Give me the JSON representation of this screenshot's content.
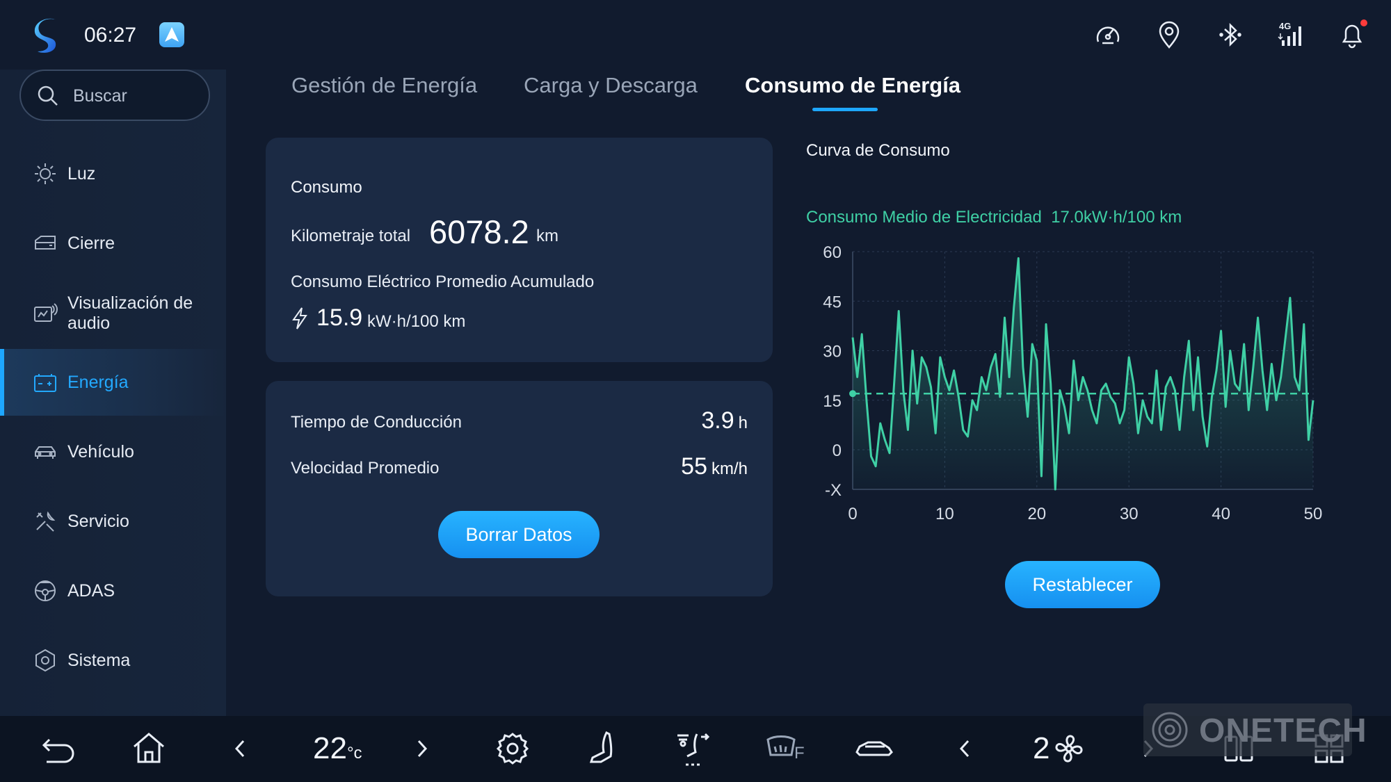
{
  "status": {
    "time": "06:27",
    "network": "4G",
    "icons": [
      "speedometer-icon",
      "location-icon",
      "bluetooth-icon",
      "signal-icon",
      "bell-icon"
    ]
  },
  "search": {
    "placeholder": "Buscar"
  },
  "sidebar": {
    "items": [
      {
        "label": "Luz",
        "icon": "sun-icon"
      },
      {
        "label": "Cierre",
        "icon": "door-icon"
      },
      {
        "label": "Visualización de audio",
        "icon": "audio-display-icon"
      },
      {
        "label": "Energía",
        "icon": "battery-icon",
        "active": true
      },
      {
        "label": "Vehículo",
        "icon": "car-icon"
      },
      {
        "label": "Servicio",
        "icon": "wrench-icon"
      },
      {
        "label": "ADAS",
        "icon": "steering-wheel-icon"
      },
      {
        "label": "Sistema",
        "icon": "hexagon-gear-icon"
      }
    ]
  },
  "tabs": [
    {
      "label": "Gestión de Energía"
    },
    {
      "label": "Carga y Descarga"
    },
    {
      "label": "Consumo de Energía",
      "active": true
    }
  ],
  "consumption": {
    "title": "Consumo",
    "mileage_label": "Kilometraje total",
    "mileage_value": "6078.2",
    "mileage_unit": "km",
    "avg_label": "Consumo Eléctrico Promedio Acumulado",
    "avg_value": "15.9",
    "avg_unit": "kW·h/100 km"
  },
  "driving": {
    "time_label": "Tiempo de Conducción",
    "time_value": "3.9",
    "time_unit": "h",
    "speed_label": "Velocidad Promedio",
    "speed_value": "55",
    "speed_unit": "km/h",
    "clear_button": "Borrar Datos"
  },
  "chart_panel": {
    "title": "Curva de Consumo",
    "avg_label": "Consumo Medio de Electricidad",
    "avg_value": "17.0kW·h/100 km",
    "reset_button": "Restablecer"
  },
  "chart_data": {
    "type": "line",
    "xlim": [
      0,
      50
    ],
    "ylim": [
      -12,
      60
    ],
    "x_ticks": [
      "0",
      "10",
      "20",
      "30",
      "40",
      "50"
    ],
    "y_ticks": [
      "60",
      "45",
      "30",
      "15",
      "0",
      "-X"
    ],
    "y_tick_values": [
      60,
      45,
      30,
      15,
      0,
      -12
    ],
    "average": 17,
    "grid": true,
    "line_color": "#3fd0a5",
    "x": [
      0,
      0.5,
      1,
      1.5,
      2,
      2.5,
      3,
      3.5,
      4,
      4.5,
      5,
      5.5,
      6,
      6.5,
      7,
      7.5,
      8,
      8.5,
      9,
      9.5,
      10,
      10.5,
      11,
      11.5,
      12,
      12.5,
      13,
      13.5,
      14,
      14.5,
      15,
      15.5,
      16,
      16.5,
      17,
      17.5,
      18,
      18.5,
      19,
      19.5,
      20,
      20.5,
      21,
      21.5,
      22,
      22.5,
      23,
      23.5,
      24,
      24.5,
      25,
      25.5,
      26,
      26.5,
      27,
      27.5,
      28,
      28.5,
      29,
      29.5,
      30,
      30.5,
      31,
      31.5,
      32,
      32.5,
      33,
      33.5,
      34,
      34.5,
      35,
      35.5,
      36,
      36.5,
      37,
      37.5,
      38,
      38.5,
      39,
      39.5,
      40,
      40.5,
      41,
      41.5,
      42,
      42.5,
      43,
      43.5,
      44,
      44.5,
      45,
      45.5,
      46,
      46.5,
      47,
      47.5,
      48,
      48.5,
      49,
      49.5,
      50
    ],
    "y": [
      34,
      22,
      35,
      15,
      -2,
      -5,
      8,
      3,
      -1,
      20,
      42,
      18,
      6,
      30,
      14,
      28,
      25,
      19,
      5,
      28,
      22,
      18,
      24,
      16,
      6,
      4,
      15,
      12,
      22,
      18,
      25,
      29,
      16,
      40,
      22,
      43,
      58,
      25,
      10,
      32,
      27,
      -8,
      38,
      20,
      -12,
      18,
      13,
      5,
      27,
      15,
      22,
      18,
      12,
      8,
      18,
      20,
      16,
      14,
      8,
      12,
      28,
      20,
      5,
      15,
      10,
      8,
      24,
      6,
      19,
      22,
      18,
      6,
      22,
      33,
      12,
      28,
      10,
      1,
      16,
      24,
      36,
      13,
      30,
      20,
      18,
      32,
      12,
      25,
      40,
      24,
      12,
      26,
      15,
      22,
      34,
      46,
      22,
      18,
      38,
      3,
      15
    ]
  },
  "dock": {
    "temperature": "22",
    "temperature_unit": "°c",
    "fan_speed": "2",
    "rear_defrost_label": "F",
    "icons": [
      "back-icon",
      "home-icon",
      "chevron-left-icon",
      "chevron-right-icon",
      "gear-icon",
      "seat-icon",
      "airflow-icon",
      "rear-defrost-icon",
      "car-side-icon",
      "fan-icon",
      "split-screen-icon",
      "app-grid-icon"
    ]
  },
  "watermark": {
    "text": "ONETECH"
  }
}
